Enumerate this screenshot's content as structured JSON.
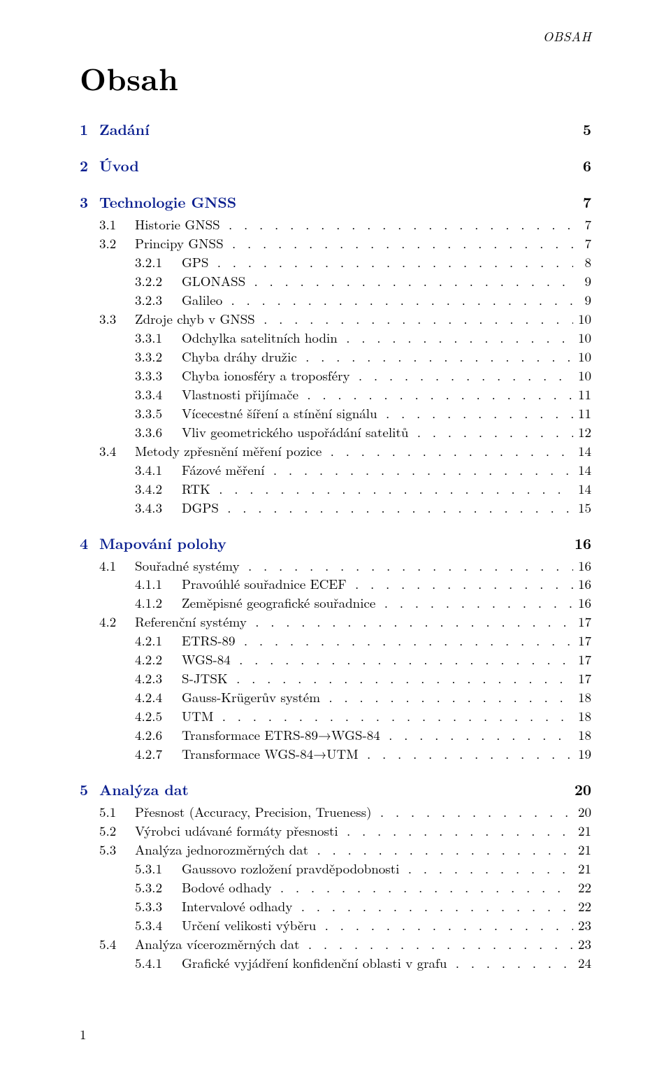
{
  "running_head": "OBSAH",
  "title": "Obsah",
  "page_number": "1",
  "leader_dots": ". . . . . . . . . . . . . . . . . . . . . . . . . . . . . . . . . . . . . . . . . . . . . . . . . . . . . . . . . . . . . . . . . . . . . . . .",
  "link_color": "#0a1f8f",
  "chapters": [
    {
      "num": "1",
      "label": "Zadání",
      "page": "5",
      "sections": []
    },
    {
      "num": "2",
      "label": "Úvod",
      "page": "6",
      "sections": []
    },
    {
      "num": "3",
      "label": "Technologie GNSS",
      "page": "7",
      "sections": [
        {
          "num": "3.1",
          "label": "Historie GNSS",
          "page": "7",
          "subs": []
        },
        {
          "num": "3.2",
          "label": "Principy GNSS",
          "page": "7",
          "subs": [
            {
              "num": "3.2.1",
              "label": "GPS",
              "page": "8"
            },
            {
              "num": "3.2.2",
              "label": "GLONASS",
              "page": "9"
            },
            {
              "num": "3.2.3",
              "label": "Galileo",
              "page": "9"
            }
          ]
        },
        {
          "num": "3.3",
          "label": "Zdroje chyb v GNSS",
          "page": "10",
          "subs": [
            {
              "num": "3.3.1",
              "label": "Odchylka satelitních hodin",
              "page": "10"
            },
            {
              "num": "3.3.2",
              "label": "Chyba dráhy družic",
              "page": "10"
            },
            {
              "num": "3.3.3",
              "label": "Chyba ionosféry a troposféry",
              "page": "10"
            },
            {
              "num": "3.3.4",
              "label": "Vlastnosti přijímače",
              "page": "11"
            },
            {
              "num": "3.3.5",
              "label": "Vícecestné šíření a stínění signálu",
              "page": "11"
            },
            {
              "num": "3.3.6",
              "label": "Vliv geometrického uspořádání satelitů",
              "page": "12"
            }
          ]
        },
        {
          "num": "3.4",
          "label": "Metody zpřesnění měření pozice",
          "page": "14",
          "subs": [
            {
              "num": "3.4.1",
              "label": "Fázové měření",
              "page": "14"
            },
            {
              "num": "3.4.2",
              "label": "RTK",
              "page": "14"
            },
            {
              "num": "3.4.3",
              "label": "DGPS",
              "page": "15"
            }
          ]
        }
      ]
    },
    {
      "num": "4",
      "label": "Mapování polohy",
      "page": "16",
      "sections": [
        {
          "num": "4.1",
          "label": "Souřadné systémy",
          "page": "16",
          "subs": [
            {
              "num": "4.1.1",
              "label": "Pravoúhlé souřadnice ECEF",
              "page": "16"
            },
            {
              "num": "4.1.2",
              "label": "Zeměpisné geografické souřadnice",
              "page": "16"
            }
          ]
        },
        {
          "num": "4.2",
          "label": "Referenční systémy",
          "page": "17",
          "subs": [
            {
              "num": "4.2.1",
              "label": "ETRS-89",
              "page": "17"
            },
            {
              "num": "4.2.2",
              "label": "WGS-84",
              "page": "17"
            },
            {
              "num": "4.2.3",
              "label": "S-JTSK",
              "page": "17"
            },
            {
              "num": "4.2.4",
              "label": "Gauss-Krügerův systém",
              "page": "18"
            },
            {
              "num": "4.2.5",
              "label": "UTM",
              "page": "18"
            },
            {
              "num": "4.2.6",
              "label": "Transformace ETRS-89→WGS-84",
              "page": "18"
            },
            {
              "num": "4.2.7",
              "label": "Transformace WGS-84→UTM",
              "page": "19"
            }
          ]
        }
      ]
    },
    {
      "num": "5",
      "label": "Analýza dat",
      "page": "20",
      "sections": [
        {
          "num": "5.1",
          "label": "Přesnost (Accuracy, Precision, Trueness)",
          "page": "20",
          "subs": []
        },
        {
          "num": "5.2",
          "label": "Výrobci udávané formáty přesnosti",
          "page": "21",
          "subs": []
        },
        {
          "num": "5.3",
          "label": "Analýza jednorozměrných dat",
          "page": "21",
          "subs": [
            {
              "num": "5.3.1",
              "label": "Gaussovo rozložení pravděpodobnosti",
              "page": "21"
            },
            {
              "num": "5.3.2",
              "label": "Bodové odhady",
              "page": "22"
            },
            {
              "num": "5.3.3",
              "label": "Intervalové odhady",
              "page": "22"
            },
            {
              "num": "5.3.4",
              "label": "Určení velikosti výběru",
              "page": "23"
            }
          ]
        },
        {
          "num": "5.4",
          "label": "Analýza vícerozměrných dat",
          "page": "23",
          "subs": [
            {
              "num": "5.4.1",
              "label": "Grafické vyjádření konfidenční oblasti v grafu",
              "page": "24"
            }
          ]
        }
      ]
    }
  ]
}
